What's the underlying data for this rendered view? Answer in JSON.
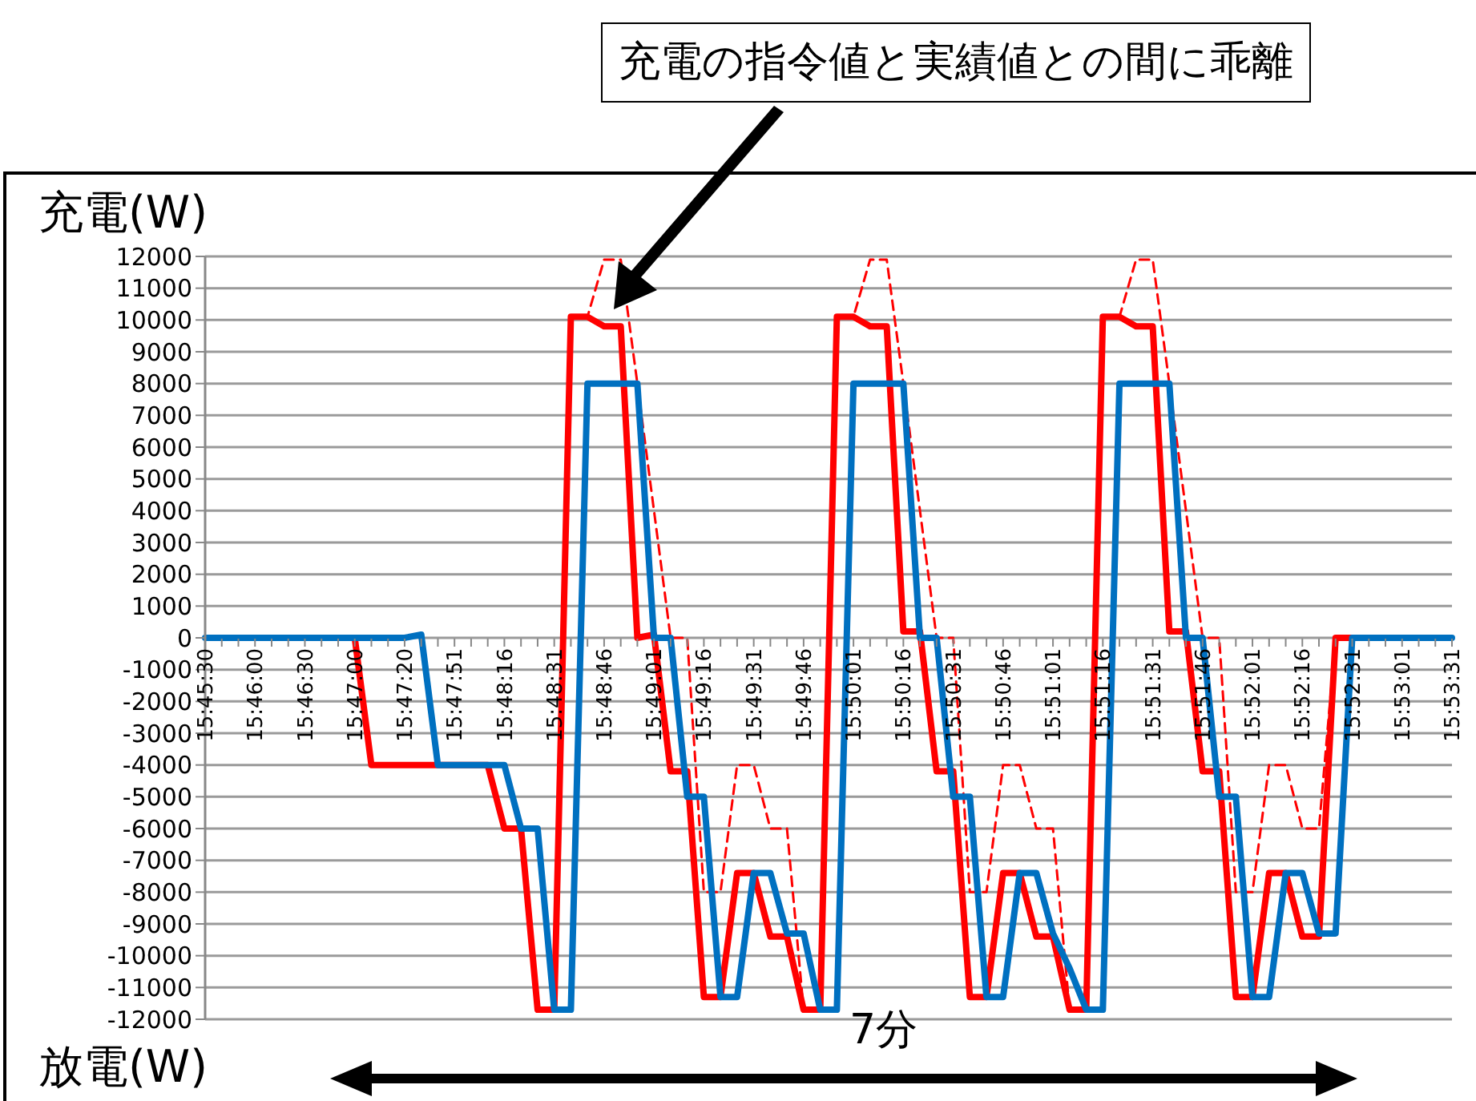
{
  "chart_data": {
    "type": "line",
    "ylabel": "充電(W)",
    "annotations": [
      "充電の指令値と実績値との間に乖離",
      "7分",
      "放電(W)"
    ],
    "categories": [
      "15:45:30",
      null,
      null,
      "15:46:00",
      null,
      null,
      "15:46:30",
      null,
      null,
      "15:47:00",
      null,
      null,
      "15:47:20",
      null,
      null,
      "15:47:51",
      null,
      null,
      "15:48:16",
      null,
      null,
      "15:48:31",
      null,
      null,
      "15:48:46",
      null,
      null,
      "15:49:01",
      null,
      null,
      "15:49:16",
      null,
      null,
      "15:49:31",
      null,
      null,
      "15:49:46",
      null,
      null,
      "15:50:01",
      null,
      null,
      "15:50:16",
      null,
      null,
      "15:50:31",
      null,
      null,
      "15:50:46",
      null,
      null,
      "15:51:01",
      null,
      null,
      "15:51:16",
      null,
      null,
      "15:51:31",
      null,
      null,
      "15:51:46",
      null,
      null,
      "15:52:01",
      null,
      null,
      "15:52:16",
      null,
      null,
      "15:52:31",
      null,
      null,
      "15:53:01",
      null,
      null,
      "15:53:31"
    ],
    "series": [
      {
        "color": "#ff0000",
        "line_style": "dashed",
        "values": [
          null,
          null,
          null,
          null,
          null,
          null,
          null,
          null,
          null,
          null,
          null,
          null,
          null,
          null,
          null,
          null,
          null,
          null,
          null,
          null,
          null,
          -11700,
          10100,
          10100,
          11900,
          11900,
          8000,
          4000,
          0,
          0,
          -8000,
          -8000,
          -4000,
          -4000,
          -6000,
          -6000,
          -11700,
          -11700,
          10100,
          10100,
          11900,
          11900,
          8000,
          4000,
          0,
          0,
          -8000,
          -8000,
          -4000,
          -4000,
          -6000,
          -6000,
          -11700,
          -11700,
          10100,
          10100,
          11900,
          11900,
          8000,
          4000,
          0,
          0,
          -8000,
          -8000,
          -4000,
          -4000,
          -6000,
          -6000,
          0,
          null,
          null,
          null,
          null,
          null,
          null,
          null
        ]
      },
      {
        "color": "#ff0000",
        "line_style": "solid",
        "values": [
          null,
          null,
          null,
          null,
          null,
          null,
          null,
          0,
          0,
          0,
          -4000,
          -4000,
          -4000,
          -4000,
          -4000,
          -4000,
          -4000,
          -4000,
          -6000,
          -6000,
          -11700,
          -11700,
          10100,
          10100,
          9800,
          9800,
          0,
          100,
          -4200,
          -4200,
          -11300,
          -11300,
          -7400,
          -7400,
          -9400,
          -9400,
          -11700,
          -11700,
          10100,
          10100,
          9800,
          9800,
          200,
          200,
          -4200,
          -4200,
          -11300,
          -11300,
          -7400,
          -7400,
          -9400,
          -9400,
          -11700,
          -11700,
          10100,
          10100,
          9800,
          9800,
          200,
          200,
          -4200,
          -4200,
          -11300,
          -11300,
          -7400,
          -7400,
          -9400,
          -9400,
          0,
          0,
          0,
          null,
          null,
          null,
          null,
          null
        ]
      },
      {
        "color": "#0070c0",
        "line_style": "solid",
        "values": [
          0,
          0,
          0,
          0,
          0,
          0,
          0,
          0,
          0,
          0,
          0,
          0,
          0,
          100,
          -4000,
          -4000,
          -4000,
          -4000,
          -4000,
          -6000,
          -6000,
          -11700,
          -11700,
          8000,
          8000,
          8000,
          8000,
          0,
          0,
          -5000,
          -5000,
          -11300,
          -11300,
          -7400,
          -7400,
          -9300,
          -9300,
          -11700,
          -11700,
          8000,
          8000,
          8000,
          8000,
          0,
          0,
          -5000,
          -5000,
          -11300,
          -11300,
          -7400,
          -7400,
          -9300,
          -10400,
          -11700,
          -11700,
          8000,
          8000,
          8000,
          8000,
          0,
          0,
          -5000,
          -5000,
          -11300,
          -11300,
          -7400,
          -7400,
          -9300,
          -9300,
          0,
          0,
          0,
          0,
          0,
          0,
          0
        ]
      }
    ],
    "ylim": [
      -12000,
      12000
    ],
    "yticks": [
      -12000,
      -11000,
      -10000,
      -9000,
      -8000,
      -7000,
      -6000,
      -5000,
      -4000,
      -3000,
      -2000,
      -1000,
      0,
      1000,
      2000,
      3000,
      4000,
      5000,
      6000,
      7000,
      8000,
      9000,
      10000,
      11000,
      12000
    ],
    "grid": "y",
    "legend": false,
    "marker": "none"
  }
}
